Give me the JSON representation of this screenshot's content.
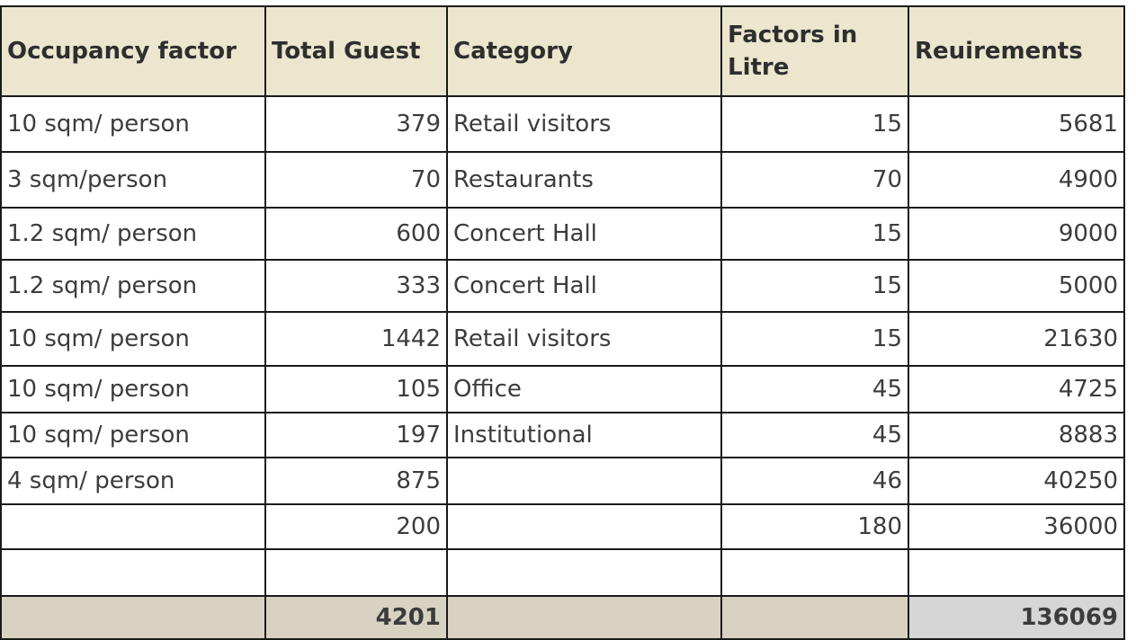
{
  "table": {
    "headers": [
      "Occupancy factor",
      "Total Guest",
      "Category",
      "Factors in Litre",
      "Reuirements"
    ],
    "rows": [
      {
        "occupancy": "10 sqm/ person",
        "guests": "379",
        "category": "Retail visitors",
        "factor": "15",
        "requirement": "5681"
      },
      {
        "occupancy": "3 sqm/person",
        "guests": "70",
        "category": "Restaurants",
        "factor": "70",
        "requirement": "4900"
      },
      {
        "occupancy": "1.2 sqm/ person",
        "guests": "600",
        "category": "Concert Hall",
        "factor": "15",
        "requirement": "9000"
      },
      {
        "occupancy": "1.2 sqm/ person",
        "guests": "333",
        "category": "Concert Hall",
        "factor": "15",
        "requirement": "5000"
      },
      {
        "occupancy": "10 sqm/ person",
        "guests": "1442",
        "category": "Retail visitors",
        "factor": "15",
        "requirement": "21630"
      },
      {
        "occupancy": "10 sqm/ person",
        "guests": "105",
        "category": "Office",
        "factor": "45",
        "requirement": "4725"
      },
      {
        "occupancy": "10 sqm/ person",
        "guests": "197",
        "category": "Institutional",
        "factor": "45",
        "requirement": "8883"
      },
      {
        "occupancy": "4 sqm/ person",
        "guests": "875",
        "category": "",
        "factor": "46",
        "requirement": "40250"
      },
      {
        "occupancy": "",
        "guests": "200",
        "category": "",
        "factor": "180",
        "requirement": "36000"
      },
      {
        "occupancy": "",
        "guests": "",
        "category": "",
        "factor": "",
        "requirement": ""
      }
    ],
    "totals": {
      "occupancy": "",
      "guests": "4201",
      "category": "",
      "factor": "",
      "requirement": "136069"
    }
  },
  "colors": {
    "header_fill": "#ece6cf",
    "total_fill": "#d8d2c2",
    "grand_total_fill": "#d6d6d6",
    "gridline": "#1a1a1a"
  }
}
